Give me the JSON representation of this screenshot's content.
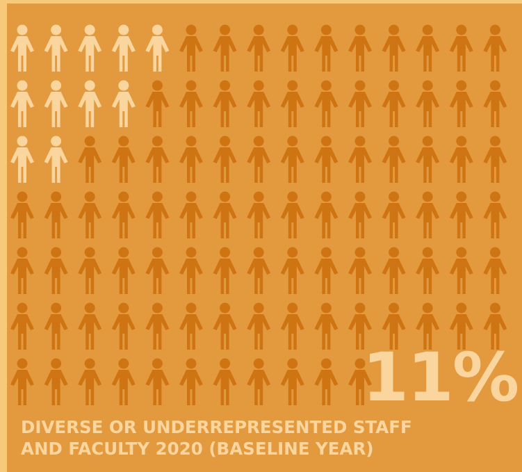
{
  "colors": {
    "page_border": "#f8c97a",
    "card_background": "#e39a3f",
    "highlight_figure": "#fbd59e",
    "base_figure": "#ce7412",
    "text": "#fbd59e"
  },
  "icon": "person-icon",
  "headline": {
    "value": "11%"
  },
  "caption": {
    "line1": "DIVERSE OR UNDERREPRESENTED STAFF",
    "line2": "AND FACULTY 2020 (BASELINE YEAR)"
  },
  "chart_data": {
    "type": "pictogram",
    "value_percent": 11,
    "rows": [
      {
        "highlighted": 5,
        "visible": 15
      },
      {
        "highlighted": 4,
        "visible": 15
      },
      {
        "highlighted": 2,
        "visible": 15
      },
      {
        "highlighted": 0,
        "visible": 15
      },
      {
        "highlighted": 0,
        "visible": 15
      },
      {
        "highlighted": 0,
        "visible": 15
      },
      {
        "highlighted": 0,
        "visible": 11
      }
    ],
    "highlighted_count": 11,
    "series": [
      {
        "name": "DIVERSE OR UNDERREPRESENTED STAFF AND FACULTY 2020 (BASELINE YEAR)",
        "value_percent": 11
      }
    ]
  }
}
